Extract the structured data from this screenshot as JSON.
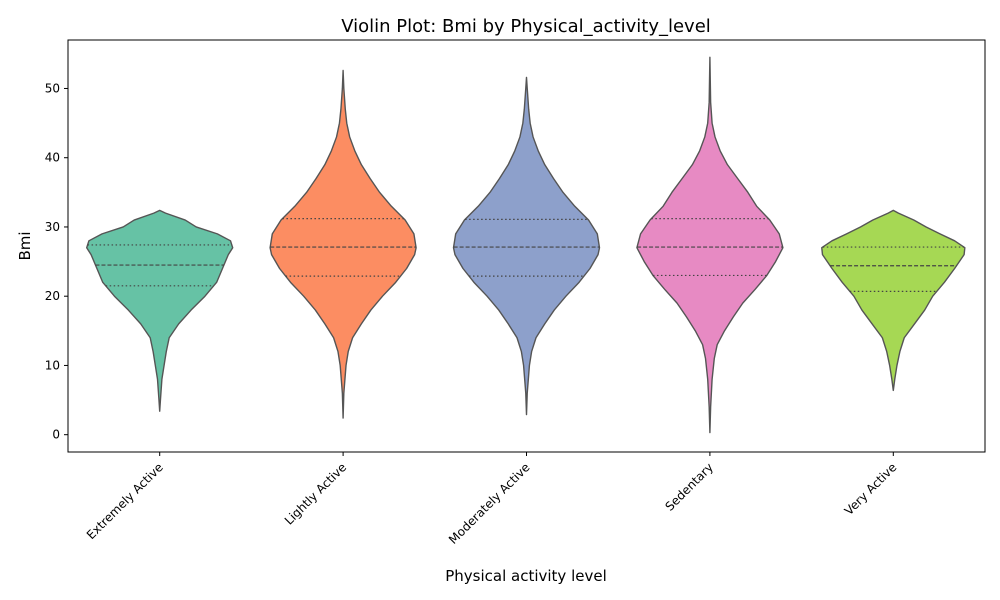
{
  "chart_data": {
    "type": "violin",
    "title": "Violin Plot: Bmi by Physical_activity_level",
    "xlabel": "Physical activity level",
    "ylabel": "Bmi",
    "ylim": [
      -2.5,
      57
    ],
    "yticks": [
      0,
      10,
      20,
      30,
      40,
      50
    ],
    "grid": false,
    "categories": [
      "Extremely Active",
      "Lightly Active",
      "Moderately Active",
      "Sedentary",
      "Very Active"
    ],
    "colors": [
      "#66c2a5",
      "#fc8d62",
      "#8da0cb",
      "#e78ac3",
      "#a6d854"
    ],
    "violins": [
      {
        "category": "Extremely Active",
        "min": 3.4,
        "max": 32.4,
        "q1": 21.5,
        "median": 24.5,
        "q3": 27.4,
        "profile": [
          [
            3.4,
            0.0
          ],
          [
            5,
            0.01
          ],
          [
            8,
            0.03
          ],
          [
            10,
            0.06
          ],
          [
            12,
            0.09
          ],
          [
            14,
            0.13
          ],
          [
            16,
            0.26
          ],
          [
            18,
            0.43
          ],
          [
            20,
            0.62
          ],
          [
            22,
            0.78
          ],
          [
            24,
            0.86
          ],
          [
            26,
            0.94
          ],
          [
            27,
            1.0
          ],
          [
            28,
            0.97
          ],
          [
            29,
            0.79
          ],
          [
            30,
            0.5
          ],
          [
            31,
            0.35
          ],
          [
            32,
            0.08
          ],
          [
            32.4,
            0.0
          ]
        ]
      },
      {
        "category": "Lightly Active",
        "min": 2.4,
        "max": 52.6,
        "q1": 22.9,
        "median": 27.1,
        "q3": 31.2,
        "profile": [
          [
            2.4,
            0.0
          ],
          [
            6,
            0.01
          ],
          [
            10,
            0.04
          ],
          [
            12,
            0.07
          ],
          [
            14,
            0.13
          ],
          [
            16,
            0.25
          ],
          [
            18,
            0.38
          ],
          [
            20,
            0.54
          ],
          [
            22,
            0.72
          ],
          [
            24,
            0.87
          ],
          [
            26,
            0.98
          ],
          [
            27,
            1.0
          ],
          [
            29,
            0.97
          ],
          [
            31,
            0.85
          ],
          [
            33,
            0.66
          ],
          [
            35,
            0.5
          ],
          [
            37,
            0.37
          ],
          [
            39,
            0.25
          ],
          [
            41,
            0.16
          ],
          [
            43,
            0.09
          ],
          [
            45,
            0.05
          ],
          [
            47,
            0.03
          ],
          [
            50,
            0.01
          ],
          [
            52.6,
            0.0
          ]
        ]
      },
      {
        "category": "Moderately Active",
        "min": 2.9,
        "max": 51.6,
        "q1": 22.9,
        "median": 27.1,
        "q3": 31.1,
        "profile": [
          [
            2.9,
            0.0
          ],
          [
            6,
            0.01
          ],
          [
            10,
            0.04
          ],
          [
            12,
            0.07
          ],
          [
            14,
            0.13
          ],
          [
            16,
            0.25
          ],
          [
            18,
            0.38
          ],
          [
            20,
            0.54
          ],
          [
            22,
            0.72
          ],
          [
            24,
            0.87
          ],
          [
            26,
            0.98
          ],
          [
            27,
            1.0
          ],
          [
            29,
            0.97
          ],
          [
            31,
            0.85
          ],
          [
            33,
            0.66
          ],
          [
            35,
            0.5
          ],
          [
            37,
            0.37
          ],
          [
            39,
            0.25
          ],
          [
            41,
            0.16
          ],
          [
            43,
            0.09
          ],
          [
            45,
            0.05
          ],
          [
            47,
            0.03
          ],
          [
            50,
            0.01
          ],
          [
            51.6,
            0.0
          ]
        ]
      },
      {
        "category": "Sedentary",
        "min": 0.3,
        "max": 54.5,
        "q1": 23.0,
        "median": 27.1,
        "q3": 31.2,
        "profile": [
          [
            0.3,
            0.0
          ],
          [
            4,
            0.01
          ],
          [
            8,
            0.03
          ],
          [
            11,
            0.06
          ],
          [
            13,
            0.1
          ],
          [
            15,
            0.2
          ],
          [
            17,
            0.32
          ],
          [
            19,
            0.45
          ],
          [
            21,
            0.62
          ],
          [
            23,
            0.78
          ],
          [
            25,
            0.9
          ],
          [
            27,
            1.0
          ],
          [
            29,
            0.95
          ],
          [
            31,
            0.82
          ],
          [
            33,
            0.64
          ],
          [
            35,
            0.52
          ],
          [
            37,
            0.38
          ],
          [
            39,
            0.24
          ],
          [
            41,
            0.14
          ],
          [
            43,
            0.07
          ],
          [
            45,
            0.03
          ],
          [
            48,
            0.01
          ],
          [
            54.5,
            0.0
          ]
        ]
      },
      {
        "category": "Very Active",
        "min": 6.4,
        "max": 32.4,
        "q1": 20.7,
        "median": 24.4,
        "q3": 27.1,
        "profile": [
          [
            6.4,
            0.0
          ],
          [
            8,
            0.02
          ],
          [
            10,
            0.05
          ],
          [
            12,
            0.09
          ],
          [
            14,
            0.15
          ],
          [
            16,
            0.29
          ],
          [
            18,
            0.43
          ],
          [
            20,
            0.54
          ],
          [
            22,
            0.7
          ],
          [
            24,
            0.84
          ],
          [
            26,
            0.97
          ],
          [
            27,
            0.98
          ],
          [
            28,
            0.84
          ],
          [
            29,
            0.64
          ],
          [
            30,
            0.45
          ],
          [
            31,
            0.28
          ],
          [
            32,
            0.07
          ],
          [
            32.4,
            0.0
          ]
        ]
      }
    ]
  }
}
